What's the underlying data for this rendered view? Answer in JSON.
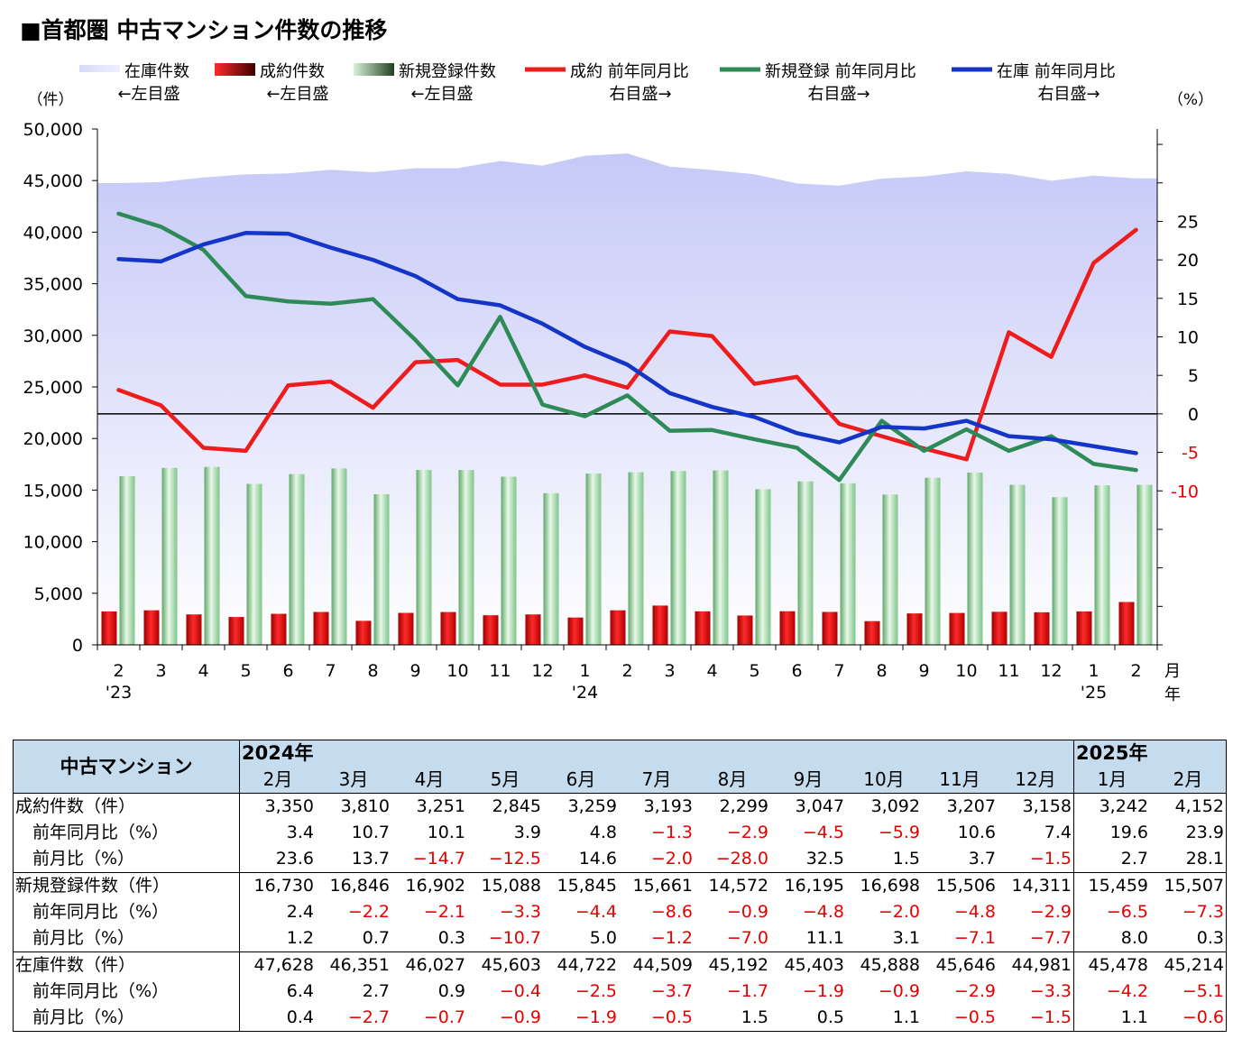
{
  "title": "■首都圏 中古マンション件数の推移",
  "legend": [
    {
      "name": "在庫件数",
      "axis_note": "←左目盛",
      "color": "#c8ccf8",
      "style": "area"
    },
    {
      "name": "成約件数",
      "axis_note": "←左目盛",
      "color": "#e00000",
      "style": "bar"
    },
    {
      "name": "新規登録件数",
      "axis_note": "←左目盛",
      "color": "#a8e0a8",
      "style": "bar"
    },
    {
      "name": "成約 前年同月比",
      "axis_note": "右目盛→",
      "color": "#ee1c1c",
      "style": "line"
    },
    {
      "name": "新規登録 前年同月比",
      "axis_note": "右目盛→",
      "color": "#2e8b57",
      "style": "line"
    },
    {
      "name": "在庫 前年同月比",
      "axis_note": "右目盛→",
      "color": "#1535c8",
      "style": "line"
    }
  ],
  "chart_data": {
    "type": "bar",
    "left_axis_unit": "（件）",
    "right_axis_unit": "（%）",
    "month_unit": "月",
    "year_unit": "年",
    "categories": [
      "2",
      "3",
      "4",
      "5",
      "6",
      "7",
      "8",
      "9",
      "10",
      "11",
      "12",
      "1",
      "2",
      "3",
      "4",
      "5",
      "6",
      "7",
      "8",
      "9",
      "10",
      "11",
      "12",
      "1",
      "2"
    ],
    "year_labels": [
      {
        "index": 0,
        "label": "'23"
      },
      {
        "index": 11,
        "label": "'24"
      },
      {
        "index": 23,
        "label": "'25"
      }
    ],
    "left_ylim": [
      0,
      50000
    ],
    "left_ticks": [
      "0",
      "5,000",
      "10,000",
      "15,000",
      "20,000",
      "25,000",
      "30,000",
      "35,000",
      "40,000",
      "45,000",
      "50,000"
    ],
    "right_ylim": [
      -30,
      37
    ],
    "right_ticks": [
      25,
      20,
      15,
      10,
      5,
      0,
      -5,
      -10
    ],
    "right_tick_colors": {
      "negative": "#e60000",
      "positive": "#000000"
    },
    "series": [
      {
        "name": "在庫件数",
        "axis": "left",
        "kind": "area",
        "values": [
          44750,
          44850,
          45300,
          45600,
          45700,
          46050,
          45800,
          46200,
          46200,
          46900,
          46450,
          47400,
          47628,
          46351,
          46027,
          45603,
          44722,
          44509,
          45192,
          45403,
          45888,
          45646,
          44981,
          45478,
          45214
        ]
      },
      {
        "name": "新規登録件数",
        "axis": "left",
        "kind": "bar",
        "values": [
          16350,
          17150,
          17250,
          15600,
          16550,
          17100,
          14600,
          16950,
          16950,
          16300,
          14700,
          16600,
          16730,
          16846,
          16902,
          15088,
          15845,
          15661,
          14572,
          16195,
          16698,
          15506,
          14311,
          15459,
          15507
        ]
      },
      {
        "name": "成約件数",
        "axis": "left",
        "kind": "bar",
        "values": [
          3240,
          3350,
          2950,
          2700,
          3010,
          3190,
          2330,
          3100,
          3180,
          2870,
          2950,
          2650,
          3350,
          3810,
          3251,
          2845,
          3259,
          3193,
          2299,
          3047,
          3092,
          3207,
          3158,
          3242,
          4152
        ]
      },
      {
        "name": "成約 前年同月比",
        "axis": "right",
        "kind": "line",
        "values": [
          3.1,
          1.1,
          -4.4,
          -4.8,
          3.7,
          4.2,
          0.8,
          6.7,
          7.0,
          3.8,
          3.8,
          5.0,
          3.4,
          10.7,
          10.1,
          3.9,
          4.8,
          -1.3,
          -2.9,
          -4.5,
          -5.9,
          10.6,
          7.4,
          19.6,
          23.9
        ]
      },
      {
        "name": "新規登録 前年同月比",
        "axis": "right",
        "kind": "line",
        "values": [
          26.0,
          24.3,
          21.3,
          15.3,
          14.6,
          14.3,
          14.9,
          9.6,
          3.7,
          12.6,
          1.2,
          -0.3,
          2.4,
          -2.2,
          -2.1,
          -3.3,
          -4.4,
          -8.6,
          -0.9,
          -4.8,
          -2.0,
          -4.8,
          -2.9,
          -6.5,
          -7.3
        ]
      },
      {
        "name": "在庫 前年同月比",
        "axis": "right",
        "kind": "line",
        "values": [
          20.1,
          19.8,
          22.0,
          23.5,
          23.4,
          21.6,
          20.0,
          17.9,
          14.9,
          14.1,
          11.7,
          8.7,
          6.4,
          2.7,
          0.9,
          -0.4,
          -2.5,
          -3.7,
          -1.7,
          -1.9,
          -0.9,
          -2.9,
          -3.3,
          -4.2,
          -5.1
        ]
      }
    ]
  },
  "table": {
    "header_name": "中古マンション",
    "year_2024": "2024年",
    "year_2025": "2025年",
    "months": [
      "2月",
      "3月",
      "4月",
      "5月",
      "6月",
      "7月",
      "8月",
      "9月",
      "10月",
      "11月",
      "12月",
      "1月",
      "2月"
    ],
    "groups": [
      {
        "rows": [
          {
            "label": "成約件数（件）",
            "indent": false,
            "values": [
              "3,350",
              "3,810",
              "3,251",
              "2,845",
              "3,259",
              "3,193",
              "2,299",
              "3,047",
              "3,092",
              "3,207",
              "3,158",
              "3,242",
              "4,152"
            ]
          },
          {
            "label": "前年同月比（%）",
            "indent": true,
            "values": [
              "3.4",
              "10.7",
              "10.1",
              "3.9",
              "4.8",
              "−1.3",
              "−2.9",
              "−4.5",
              "−5.9",
              "10.6",
              "7.4",
              "19.6",
              "23.9"
            ]
          },
          {
            "label": "前月比（%）",
            "indent": true,
            "values": [
              "23.6",
              "13.7",
              "−14.7",
              "−12.5",
              "14.6",
              "−2.0",
              "−28.0",
              "32.5",
              "1.5",
              "3.7",
              "−1.5",
              "2.7",
              "28.1"
            ]
          }
        ]
      },
      {
        "rows": [
          {
            "label": "新規登録件数（件）",
            "indent": false,
            "values": [
              "16,730",
              "16,846",
              "16,902",
              "15,088",
              "15,845",
              "15,661",
              "14,572",
              "16,195",
              "16,698",
              "15,506",
              "14,311",
              "15,459",
              "15,507"
            ]
          },
          {
            "label": "前年同月比（%）",
            "indent": true,
            "values": [
              "2.4",
              "−2.2",
              "−2.1",
              "−3.3",
              "−4.4",
              "−8.6",
              "−0.9",
              "−4.8",
              "−2.0",
              "−4.8",
              "−2.9",
              "−6.5",
              "−7.3"
            ]
          },
          {
            "label": "前月比（%）",
            "indent": true,
            "values": [
              "1.2",
              "0.7",
              "0.3",
              "−10.7",
              "5.0",
              "−1.2",
              "−7.0",
              "11.1",
              "3.1",
              "−7.1",
              "−7.7",
              "8.0",
              "0.3"
            ]
          }
        ]
      },
      {
        "rows": [
          {
            "label": "在庫件数（件）",
            "indent": false,
            "values": [
              "47,628",
              "46,351",
              "46,027",
              "45,603",
              "44,722",
              "44,509",
              "45,192",
              "45,403",
              "45,888",
              "45,646",
              "44,981",
              "45,478",
              "45,214"
            ]
          },
          {
            "label": "前年同月比（%）",
            "indent": true,
            "values": [
              "6.4",
              "2.7",
              "0.9",
              "−0.4",
              "−2.5",
              "−3.7",
              "−1.7",
              "−1.9",
              "−0.9",
              "−2.9",
              "−3.3",
              "−4.2",
              "−5.1"
            ]
          },
          {
            "label": "前月比（%）",
            "indent": true,
            "values": [
              "0.4",
              "−2.7",
              "−0.7",
              "−0.9",
              "−1.9",
              "−0.5",
              "1.5",
              "0.5",
              "1.1",
              "−0.5",
              "−1.5",
              "1.1",
              "−0.6"
            ]
          }
        ]
      }
    ]
  }
}
